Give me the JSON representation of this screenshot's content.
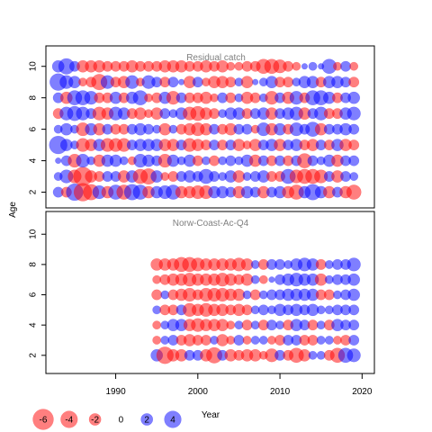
{
  "chart_data": {
    "type": "scatter",
    "subtype": "bubble",
    "ylabel": "Age",
    "xlabel": "Year",
    "grid": false,
    "x_ticks": [
      1990,
      2000,
      2010,
      2020
    ],
    "y_ticks": [
      2,
      4,
      6,
      8,
      10
    ],
    "xlim": [
      1981.5,
      2021.5
    ],
    "colors": {
      "positive": "#0000ff",
      "negative": "#ff0000",
      "alpha": 0.5
    },
    "legend": {
      "position": "bottom-left",
      "values": [
        -6,
        -4,
        -2,
        0,
        2,
        4
      ],
      "labels": [
        "-6",
        "-4",
        "-2",
        "0",
        "2",
        "4"
      ]
    },
    "panels": [
      {
        "title": "Residual catch",
        "ylim": [
          1,
          11.3
        ],
        "years": [
          1983,
          2019
        ],
        "ages": [
          2,
          10
        ],
        "residuals_by_age": {
          "10": [
            2.0,
            3.5,
            1.5,
            -2.0,
            -2.0,
            -2.0,
            -1.5,
            -1.5,
            -1.5,
            -2.0,
            -1.5,
            -1.5,
            -1.5,
            -2.0,
            -2.0,
            -2.0,
            -1.5,
            -1.5,
            -2.0,
            -1.5,
            -2.0,
            -1.0,
            -1.0,
            -1.5,
            -1.5,
            -3.0,
            -3.0,
            -2.5,
            -1.5,
            -1.0,
            0.5,
            1.0,
            0.5,
            3.0,
            -1.0,
            1.5,
            -1.0
          ],
          "9": [
            4.0,
            2.5,
            2.0,
            -1.0,
            -1.5,
            -3.5,
            2.5,
            -1.5,
            -2.0,
            2.5,
            -1.0,
            2.5,
            1.5,
            -1.5,
            1.5,
            0.5,
            -2.0,
            1.5,
            -1.0,
            -2.0,
            -2.0,
            -1.5,
            1.0,
            -2.0,
            0.5,
            1.0,
            2.0,
            -1.5,
            -1.5,
            1.0,
            2.0,
            2.0,
            -1.5,
            2.0,
            2.0,
            1.5,
            -1.5
          ],
          "8": [
            1.5,
            -2.0,
            3.0,
            3.0,
            2.5,
            -1.5,
            -1.5,
            2.0,
            -1.5,
            2.0,
            3.0,
            -1.0,
            -1.5,
            2.0,
            -2.5,
            1.5,
            -1.5,
            -1.5,
            -2.0,
            -1.0,
            1.5,
            -1.5,
            1.0,
            -2.0,
            -1.5,
            1.0,
            -2.5,
            1.5,
            -2.0,
            2.5,
            -1.5,
            3.0,
            3.0,
            2.0,
            -1.5,
            1.5,
            2.0
          ],
          "7": [
            -1.5,
            2.5,
            3.0,
            2.5,
            1.5,
            -2.5,
            -2.0,
            2.5,
            2.0,
            -1.5,
            -2.0,
            -1.0,
            -2.0,
            1.5,
            1.0,
            2.0,
            -2.5,
            -3.0,
            -2.0,
            -1.5,
            1.0,
            2.0,
            2.0,
            -1.5,
            1.5,
            2.0,
            -2.0,
            1.5,
            2.0,
            2.5,
            -2.0,
            1.5,
            2.5,
            -1.5,
            -1.5,
            2.0,
            2.5
          ],
          "6": [
            1.0,
            2.0,
            1.0,
            -2.5,
            2.0,
            -2.0,
            1.5,
            -1.5,
            -1.5,
            1.5,
            2.0,
            1.5,
            1.0,
            -2.0,
            1.0,
            -1.5,
            -2.0,
            -2.5,
            -2.0,
            1.5,
            -1.5,
            -2.0,
            1.5,
            1.5,
            -1.0,
            2.5,
            -2.0,
            2.0,
            -1.5,
            2.5,
            1.5,
            3.0,
            -2.0,
            1.5,
            1.5,
            2.0,
            1.5
          ],
          "5": [
            4.5,
            2.0,
            1.0,
            -2.5,
            -2.0,
            2.0,
            -2.5,
            -2.5,
            -2.5,
            1.5,
            2.0,
            2.0,
            2.0,
            -2.0,
            -2.0,
            1.5,
            -2.5,
            -2.0,
            -1.5,
            1.5,
            -1.5,
            1.5,
            -2.0,
            -1.0,
            -2.0,
            1.5,
            2.0,
            -2.0,
            1.5,
            2.0,
            -1.5,
            -2.0,
            1.5,
            -1.5,
            2.0,
            -2.0,
            -1.5
          ],
          "4": [
            0.5,
            1.5,
            -2.5,
            2.5,
            1.0,
            -2.0,
            2.0,
            2.0,
            1.0,
            -1.0,
            2.5,
            2.0,
            1.5,
            -2.5,
            2.0,
            1.0,
            2.0,
            -1.5,
            1.0,
            -1.5,
            1.0,
            1.5,
            1.0,
            2.0,
            -2.0,
            1.5,
            -1.5,
            1.5,
            -1.5,
            1.5,
            -3.0,
            1.5,
            1.0,
            2.0,
            -2.0,
            1.5,
            1.5
          ],
          "3": [
            1.0,
            2.5,
            -2.5,
            -5.0,
            -2.0,
            -1.5,
            1.5,
            1.5,
            -2.0,
            2.0,
            -3.0,
            -3.5,
            2.0,
            -1.0,
            -1.5,
            1.5,
            2.0,
            1.5,
            3.0,
            1.5,
            1.0,
            2.0,
            -2.0,
            1.0,
            1.5,
            2.0,
            -1.5,
            -1.5,
            3.0,
            -2.5,
            -3.0,
            -3.0,
            -2.5,
            1.5,
            -2.0,
            1.5,
            1.0
          ],
          "2": [
            1.5,
            -1.5,
            4.0,
            -4.5,
            -3.5,
            2.5,
            -2.0,
            3.0,
            -3.0,
            3.5,
            3.0,
            -2.0,
            2.0,
            2.5,
            3.0,
            -2.0,
            -2.0,
            -2.5,
            -2.5,
            2.0,
            2.0,
            1.5,
            -2.0,
            2.0,
            1.5,
            -2.0,
            1.5,
            2.0,
            -2.0,
            -3.0,
            2.0,
            3.5,
            2.0,
            -2.0,
            1.5,
            -2.0,
            -3.0
          ]
        }
      },
      {
        "title": "Norw-Coast-Ac-Q4",
        "ylim": [
          0.8,
          11.5
        ],
        "years": [
          1995,
          2019
        ],
        "ages": [
          2,
          8
        ],
        "residuals_by_age": {
          "8": [
            -2.0,
            -2.0,
            -2.0,
            -3.0,
            -3.0,
            -2.5,
            -2.0,
            -2.0,
            -2.0,
            -2.0,
            -2.5,
            -2.0,
            1.0,
            -1.5,
            1.5,
            1.5,
            1.0,
            2.0,
            2.5,
            2.0,
            -1.5,
            1.0,
            1.5,
            1.5,
            2.5
          ],
          "7": [
            -1.0,
            -1.5,
            -2.0,
            -2.0,
            -2.5,
            -2.0,
            -2.0,
            -2.0,
            -2.5,
            -2.0,
            -1.5,
            -2.0,
            1.0,
            -1.0,
            0.5,
            1.5,
            2.0,
            2.5,
            2.0,
            2.0,
            -2.0,
            1.0,
            1.5,
            1.5,
            2.0
          ],
          "6": [
            -1.5,
            1.0,
            -1.5,
            -2.0,
            -2.5,
            -1.5,
            -2.5,
            -2.5,
            -2.5,
            -2.0,
            -2.0,
            1.0,
            -1.5,
            1.0,
            1.5,
            1.5,
            2.0,
            2.0,
            2.0,
            2.0,
            -1.5,
            -1.5,
            1.0,
            1.5,
            2.0
          ],
          "5": [
            1.0,
            -1.5,
            -1.5,
            1.5,
            -2.5,
            -2.0,
            -2.5,
            -2.0,
            -2.0,
            -1.5,
            -2.0,
            -1.5,
            1.0,
            1.5,
            1.0,
            2.0,
            1.5,
            2.0,
            1.5,
            2.0,
            1.0,
            1.0,
            1.5,
            1.5,
            1.5
          ],
          "4": [
            -1.0,
            1.0,
            2.0,
            2.0,
            -2.0,
            -2.5,
            -2.0,
            -2.0,
            -2.0,
            -1.0,
            1.0,
            -1.5,
            1.0,
            -1.5,
            1.5,
            1.0,
            -1.5,
            2.0,
            1.5,
            -1.5,
            1.0,
            -1.5,
            2.0,
            1.5,
            1.5
          ],
          "3": [
            -1.0,
            1.0,
            1.5,
            -1.5,
            -2.0,
            -1.5,
            -1.5,
            1.0,
            -2.0,
            -1.0,
            1.5,
            -1.0,
            1.0,
            1.0,
            -1.0,
            -1.5,
            1.5,
            1.5,
            -1.5,
            -1.5,
            1.0,
            1.0,
            -1.0,
            -1.5,
            1.5
          ],
          "2": [
            2.0,
            -4.0,
            -2.0,
            -2.0,
            1.5,
            1.5,
            -2.0,
            -3.5,
            1.5,
            -2.0,
            -1.5,
            -2.0,
            -2.0,
            -1.0,
            -2.5,
            1.5,
            -1.5,
            -3.0,
            -2.0,
            1.0,
            1.0,
            -1.5,
            -3.0,
            3.0,
            2.5
          ]
        }
      }
    ]
  }
}
